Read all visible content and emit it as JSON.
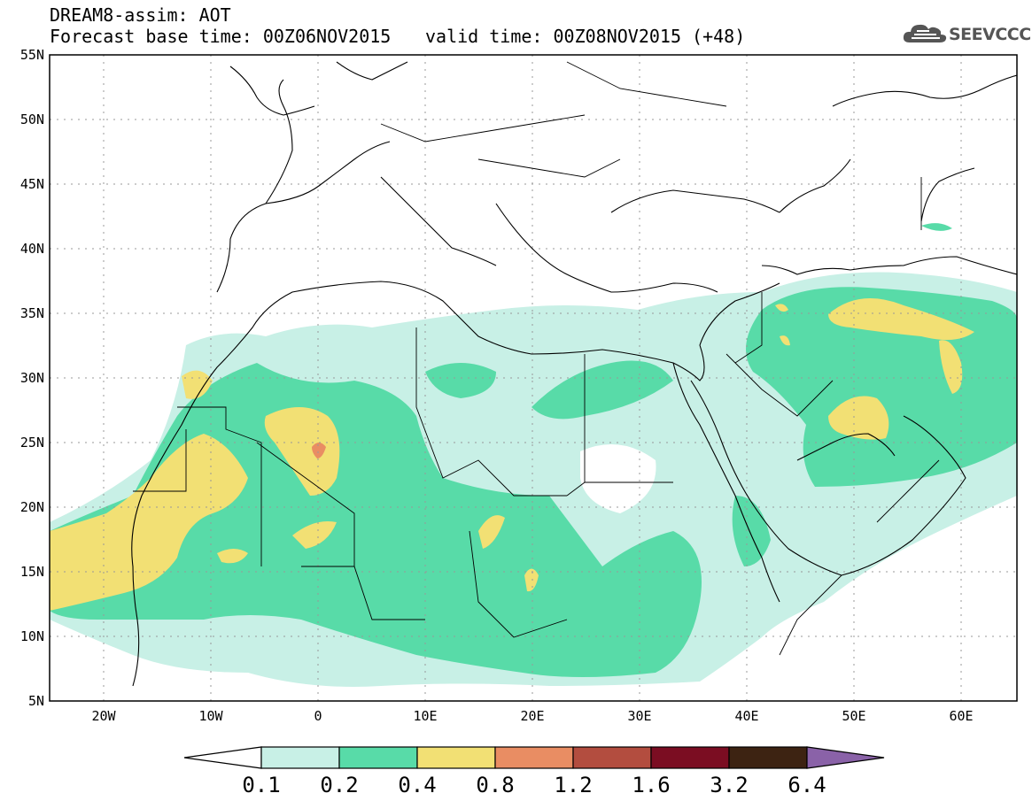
{
  "header": {
    "title_line1": "DREAM8-assim: AOT",
    "title_line2": "Forecast base time: 00Z06NOV2015",
    "valid_time": "valid time: 00Z08NOV2015 (+48)",
    "logo_text": "SEEVCCC"
  },
  "map": {
    "variable": "AOT",
    "region": "North Africa, Mediterranean, Middle East",
    "lon_range": [
      -25,
      65
    ],
    "lat_range": [
      5,
      55
    ],
    "lat_labels": [
      "55N",
      "50N",
      "45N",
      "40N",
      "35N",
      "30N",
      "25N",
      "20N",
      "15N",
      "10N",
      "5N"
    ],
    "lon_labels": [
      "20W",
      "10W",
      "0",
      "10E",
      "20E",
      "30E",
      "40E",
      "50E",
      "60E"
    ]
  },
  "colorbar": {
    "thresholds": [
      "0.1",
      "0.2",
      "0.4",
      "0.8",
      "1.2",
      "1.6",
      "3.2",
      "6.4"
    ],
    "colors": [
      "#c8f0e6",
      "#58dba8",
      "#f2e074",
      "#e98d63",
      "#b34d3f",
      "#7b0d22",
      "#3d2312",
      "#8a62a8"
    ]
  }
}
